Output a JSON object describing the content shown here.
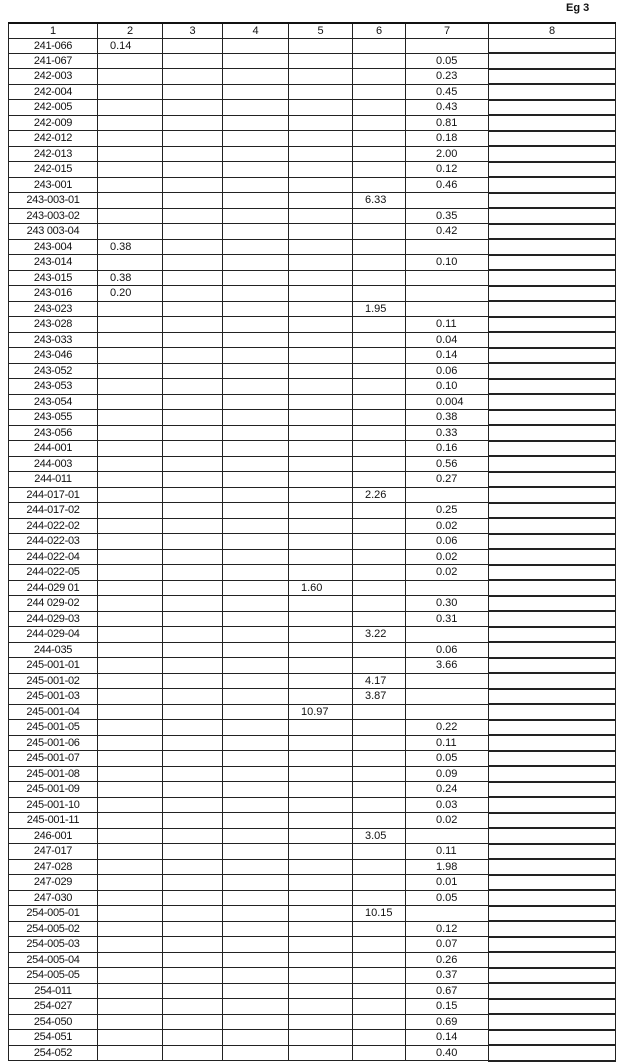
{
  "page_label": "Eg 3",
  "headers": [
    "1",
    "2",
    "3",
    "4",
    "5",
    "6",
    "7",
    "8"
  ],
  "rows": [
    [
      "241-066",
      "0.14",
      "",
      "",
      "",
      "",
      "",
      ""
    ],
    [
      "241-067",
      "",
      "",
      "",
      "",
      "",
      "0.05",
      ""
    ],
    [
      "242-003",
      "",
      "",
      "",
      "",
      "",
      "0.23",
      ""
    ],
    [
      "242-004",
      "",
      "",
      "",
      "",
      "",
      "0.45",
      ""
    ],
    [
      "242-005",
      "",
      "",
      "",
      "",
      "",
      "0.43",
      ""
    ],
    [
      "242-009",
      "",
      "",
      "",
      "",
      "",
      "0.81",
      ""
    ],
    [
      "242-012",
      "",
      "",
      "",
      "",
      "",
      "0.18",
      ""
    ],
    [
      "242-013",
      "",
      "",
      "",
      "",
      "",
      "2.00",
      ""
    ],
    [
      "242-015",
      "",
      "",
      "",
      "",
      "",
      "0.12",
      ""
    ],
    [
      "243-001",
      "",
      "",
      "",
      "",
      "",
      "0.46",
      ""
    ],
    [
      "243-003-01",
      "",
      "",
      "",
      "",
      "6.33",
      "",
      ""
    ],
    [
      "243-003-02",
      "",
      "",
      "",
      "",
      "",
      "0.35",
      ""
    ],
    [
      "243 003-04",
      "",
      "",
      "",
      "",
      "",
      "0.42",
      ""
    ],
    [
      "243-004",
      "0.38",
      "",
      "",
      "",
      "",
      "",
      ""
    ],
    [
      "243-014",
      "",
      "",
      "",
      "",
      "",
      "0.10",
      ""
    ],
    [
      "243-015",
      "0.38",
      "",
      "",
      "",
      "",
      "",
      ""
    ],
    [
      "243-016",
      "0.20",
      "",
      "",
      "",
      "",
      "",
      ""
    ],
    [
      "243-023",
      "",
      "",
      "",
      "",
      "1.95",
      "",
      ""
    ],
    [
      "243-028",
      "",
      "",
      "",
      "",
      "",
      "0.11",
      ""
    ],
    [
      "243-033",
      "",
      "",
      "",
      "",
      "",
      "0.04",
      ""
    ],
    [
      "243-046",
      "",
      "",
      "",
      "",
      "",
      "0.14",
      ""
    ],
    [
      "243-052",
      "",
      "",
      "",
      "",
      "",
      "0.06",
      ""
    ],
    [
      "243-053",
      "",
      "",
      "",
      "",
      "",
      "0.10",
      ""
    ],
    [
      "243-054",
      "",
      "",
      "",
      "",
      "",
      "0.004",
      ""
    ],
    [
      "243-055",
      "",
      "",
      "",
      "",
      "",
      "0.38",
      ""
    ],
    [
      "243-056",
      "",
      "",
      "",
      "",
      "",
      "0.33",
      ""
    ],
    [
      "244-001",
      "",
      "",
      "",
      "",
      "",
      "0.16",
      ""
    ],
    [
      "244-003",
      "",
      "",
      "",
      "",
      "",
      "0.56",
      ""
    ],
    [
      "244-011",
      "",
      "",
      "",
      "",
      "",
      "0.27",
      ""
    ],
    [
      "244-017-01",
      "",
      "",
      "",
      "",
      "2.26",
      "",
      ""
    ],
    [
      "244-017-02",
      "",
      "",
      "",
      "",
      "",
      "0.25",
      ""
    ],
    [
      "244-022-02",
      "",
      "",
      "",
      "",
      "",
      "0.02",
      ""
    ],
    [
      "244-022-03",
      "",
      "",
      "",
      "",
      "",
      "0.06",
      ""
    ],
    [
      "244-022-04",
      "",
      "",
      "",
      "",
      "",
      "0.02",
      ""
    ],
    [
      "244-022-05",
      "",
      "",
      "",
      "",
      "",
      "0.02",
      ""
    ],
    [
      "244-029 01",
      "",
      "",
      "",
      "1.60",
      "",
      "",
      ""
    ],
    [
      "244 029-02",
      "",
      "",
      "",
      "",
      "",
      "0.30",
      ""
    ],
    [
      "244-029-03",
      "",
      "",
      "",
      "",
      "",
      "0.31",
      ""
    ],
    [
      "244-029-04",
      "",
      "",
      "",
      "",
      "3.22",
      "",
      ""
    ],
    [
      "244-035",
      "",
      "",
      "",
      "",
      "",
      "0.06",
      ""
    ],
    [
      "245-001-01",
      "",
      "",
      "",
      "",
      "",
      "3.66",
      ""
    ],
    [
      "245-001-02",
      "",
      "",
      "",
      "",
      "4.17",
      "",
      ""
    ],
    [
      "245-001-03",
      "",
      "",
      "",
      "",
      "3.87",
      "",
      ""
    ],
    [
      "245-001-04",
      "",
      "",
      "",
      "10.97",
      "",
      "",
      ""
    ],
    [
      "245-001-05",
      "",
      "",
      "",
      "",
      "",
      "0.22",
      ""
    ],
    [
      "245-001-06",
      "",
      "",
      "",
      "",
      "",
      "0.11",
      ""
    ],
    [
      "245-001-07",
      "",
      "",
      "",
      "",
      "",
      "0.05",
      ""
    ],
    [
      "245-001-08",
      "",
      "",
      "",
      "",
      "",
      "0.09",
      ""
    ],
    [
      "245-001-09",
      "",
      "",
      "",
      "",
      "",
      "0.24",
      ""
    ],
    [
      "245-001-10",
      "",
      "",
      "",
      "",
      "",
      "0.03",
      ""
    ],
    [
      "245-001-11",
      "",
      "",
      "",
      "",
      "",
      "0.02",
      ""
    ],
    [
      "246-001",
      "",
      "",
      "",
      "",
      "3.05",
      "",
      ""
    ],
    [
      "247-017",
      "",
      "",
      "",
      "",
      "",
      "0.11",
      ""
    ],
    [
      "247-028",
      "",
      "",
      "",
      "",
      "",
      "1.98",
      ""
    ],
    [
      "247-029",
      "",
      "",
      "",
      "",
      "",
      "0.01",
      ""
    ],
    [
      "247-030",
      "",
      "",
      "",
      "",
      "",
      "0.05",
      ""
    ],
    [
      "254-005-01",
      "",
      "",
      "",
      "",
      "10.15",
      "",
      ""
    ],
    [
      "254-005-02",
      "",
      "",
      "",
      "",
      "",
      "0.12",
      ""
    ],
    [
      "254-005-03",
      "",
      "",
      "",
      "",
      "",
      "0.07",
      ""
    ],
    [
      "254-005-04",
      "",
      "",
      "",
      "",
      "",
      "0.26",
      ""
    ],
    [
      "254-005-05",
      "",
      "",
      "",
      "",
      "",
      "0.37",
      ""
    ],
    [
      "254-011",
      "",
      "",
      "",
      "",
      "",
      "0.67",
      ""
    ],
    [
      "254-027",
      "",
      "",
      "",
      "",
      "",
      "0.15",
      ""
    ],
    [
      "254-050",
      "",
      "",
      "",
      "",
      "",
      "0.69",
      ""
    ],
    [
      "254-051",
      "",
      "",
      "",
      "",
      "",
      "0.14",
      ""
    ],
    [
      "254-052",
      "",
      "",
      "",
      "",
      "",
      "0.40",
      ""
    ]
  ]
}
